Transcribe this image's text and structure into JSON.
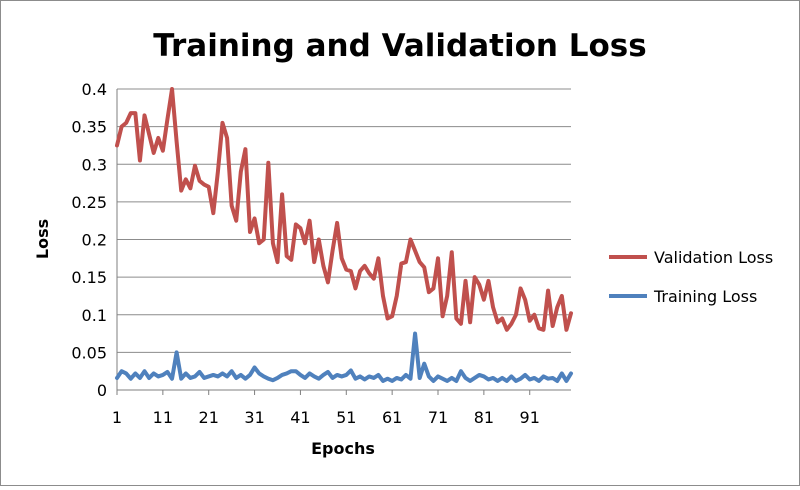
{
  "chart_data": {
    "type": "line",
    "title": "Training and Validation Loss",
    "xlabel": "Epochs",
    "ylabel": "Loss",
    "ylim": [
      0,
      0.4
    ],
    "xlim": [
      1,
      100
    ],
    "grid": "horizontal",
    "legend_position": "right",
    "y_ticks": [
      "0",
      "0.05",
      "0.1",
      "0.15",
      "0.2",
      "0.25",
      "0.3",
      "0.35",
      "0.4"
    ],
    "x_ticks": [
      "1",
      "11",
      "21",
      "31",
      "41",
      "51",
      "61",
      "71",
      "81",
      "91"
    ],
    "x": [
      1,
      2,
      3,
      4,
      5,
      6,
      7,
      8,
      9,
      10,
      11,
      12,
      13,
      14,
      15,
      16,
      17,
      18,
      19,
      20,
      21,
      22,
      23,
      24,
      25,
      26,
      27,
      28,
      29,
      30,
      31,
      32,
      33,
      34,
      35,
      36,
      37,
      38,
      39,
      40,
      41,
      42,
      43,
      44,
      45,
      46,
      47,
      48,
      49,
      50,
      51,
      52,
      53,
      54,
      55,
      56,
      57,
      58,
      59,
      60,
      61,
      62,
      63,
      64,
      65,
      66,
      67,
      68,
      69,
      70,
      71,
      72,
      73,
      74,
      75,
      76,
      77,
      78,
      79,
      80,
      81,
      82,
      83,
      84,
      85,
      86,
      87,
      88,
      89,
      90,
      91,
      92,
      93,
      94,
      95,
      96,
      97,
      98,
      99,
      100
    ],
    "series": [
      {
        "name": "Validation Loss",
        "color": "#c0504d",
        "values": [
          0.325,
          0.35,
          0.355,
          0.368,
          0.368,
          0.305,
          0.365,
          0.34,
          0.315,
          0.335,
          0.318,
          0.36,
          0.4,
          0.33,
          0.265,
          0.28,
          0.268,
          0.298,
          0.278,
          0.273,
          0.27,
          0.235,
          0.29,
          0.355,
          0.335,
          0.245,
          0.225,
          0.29,
          0.32,
          0.21,
          0.228,
          0.195,
          0.2,
          0.302,
          0.195,
          0.17,
          0.26,
          0.178,
          0.173,
          0.22,
          0.215,
          0.195,
          0.225,
          0.17,
          0.2,
          0.165,
          0.143,
          0.185,
          0.222,
          0.175,
          0.16,
          0.158,
          0.135,
          0.158,
          0.165,
          0.155,
          0.148,
          0.175,
          0.125,
          0.095,
          0.098,
          0.125,
          0.168,
          0.17,
          0.2,
          0.185,
          0.17,
          0.163,
          0.13,
          0.135,
          0.175,
          0.098,
          0.125,
          0.183,
          0.095,
          0.088,
          0.145,
          0.09,
          0.15,
          0.14,
          0.12,
          0.145,
          0.11,
          0.09,
          0.095,
          0.08,
          0.088,
          0.1,
          0.135,
          0.12,
          0.092,
          0.1,
          0.082,
          0.08,
          0.132,
          0.085,
          0.11,
          0.125,
          0.08,
          0.102
        ]
      },
      {
        "name": "Training Loss",
        "color": "#4f81bd",
        "values": [
          0.016,
          0.025,
          0.022,
          0.015,
          0.022,
          0.016,
          0.025,
          0.016,
          0.022,
          0.018,
          0.02,
          0.024,
          0.015,
          0.05,
          0.015,
          0.022,
          0.016,
          0.018,
          0.024,
          0.016,
          0.018,
          0.02,
          0.018,
          0.022,
          0.018,
          0.025,
          0.016,
          0.02,
          0.015,
          0.02,
          0.03,
          0.022,
          0.018,
          0.015,
          0.013,
          0.016,
          0.02,
          0.022,
          0.025,
          0.025,
          0.02,
          0.016,
          0.022,
          0.018,
          0.015,
          0.02,
          0.024,
          0.016,
          0.02,
          0.018,
          0.02,
          0.026,
          0.015,
          0.018,
          0.014,
          0.018,
          0.016,
          0.02,
          0.012,
          0.015,
          0.012,
          0.016,
          0.014,
          0.02,
          0.015,
          0.075,
          0.016,
          0.035,
          0.018,
          0.012,
          0.018,
          0.015,
          0.012,
          0.016,
          0.012,
          0.025,
          0.016,
          0.012,
          0.016,
          0.02,
          0.018,
          0.014,
          0.016,
          0.012,
          0.016,
          0.012,
          0.018,
          0.012,
          0.015,
          0.02,
          0.014,
          0.016,
          0.012,
          0.018,
          0.015,
          0.016,
          0.012,
          0.022,
          0.012,
          0.022
        ]
      }
    ]
  }
}
